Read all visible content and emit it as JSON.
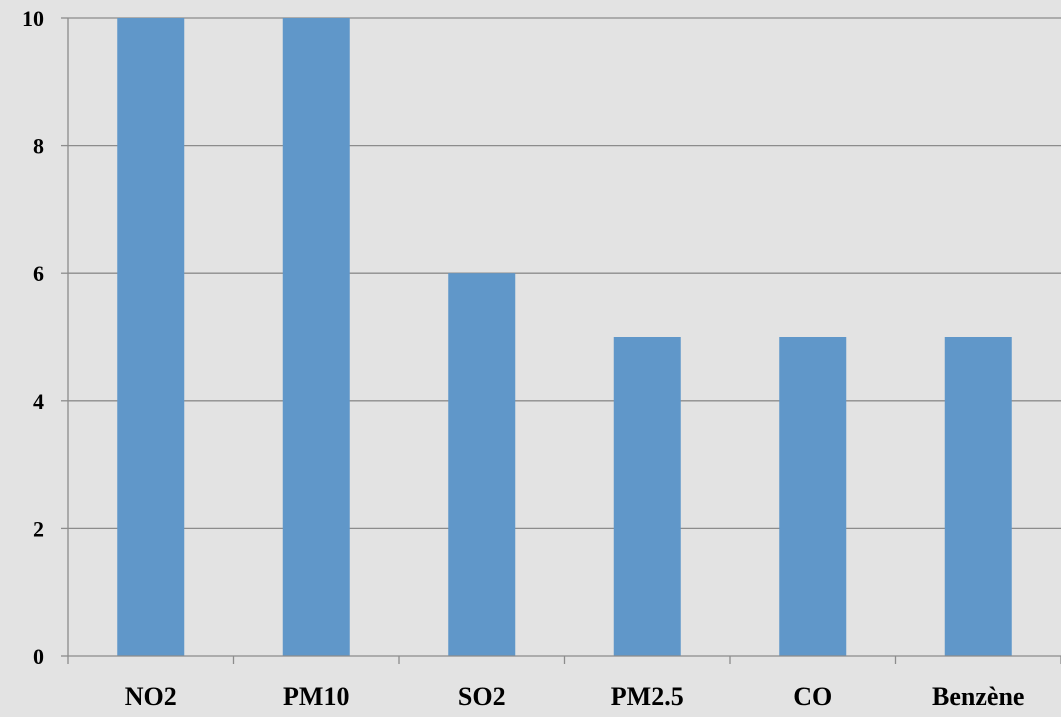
{
  "chart_data": {
    "type": "bar",
    "categories": [
      "NO2",
      "PM10",
      "SO2",
      "PM2.5",
      "CO",
      "Benzène"
    ],
    "values": [
      10,
      10,
      6,
      5,
      5,
      5
    ],
    "title": "",
    "xlabel": "",
    "ylabel": "",
    "ylim": [
      0,
      10
    ],
    "yticks": [
      "0",
      "2",
      "4",
      "6",
      "8",
      "10"
    ],
    "grid": true,
    "legend": "none",
    "colors": {
      "bar": "#6097c9",
      "background": "#e3e3e3",
      "grid": "#8c8c8c",
      "axis": "#8c8c8c",
      "text": "#000000"
    }
  }
}
